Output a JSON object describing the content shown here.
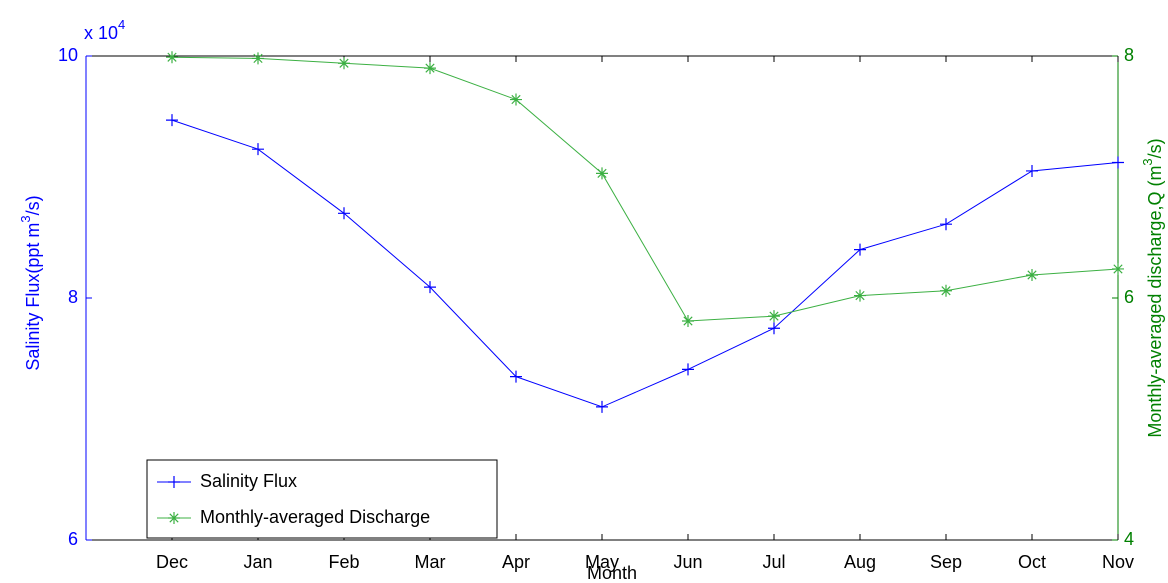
{
  "chart_data": {
    "type": "line",
    "categories": [
      "Dec",
      "Jan",
      "Feb",
      "Mar",
      "Apr",
      "May",
      "Jun",
      "Jul",
      "Aug",
      "Sep",
      "Oct",
      "Nov"
    ],
    "series": [
      {
        "name": "Salinity Flux",
        "color": "#0000ff",
        "marker": "+",
        "values": [
          9.47,
          9.23,
          8.7,
          8.09,
          7.35,
          7.1,
          7.41,
          7.75,
          8.4,
          8.61,
          9.05,
          9.12
        ]
      },
      {
        "name": "Monthly-averaged Discharge",
        "color": "#3cb043",
        "marker": "*",
        "axis": "y2",
        "values": [
          7.99,
          7.98,
          7.94,
          7.9,
          7.64,
          7.03,
          5.81,
          5.85,
          6.02,
          6.06,
          6.19,
          6.24
        ]
      }
    ],
    "xlabel": "Month",
    "ylabel": [
      "Salinity Flux(ppt m",
      "3",
      "/s)"
    ],
    "y2label": [
      "Monthly-averaged discharge,Q (m",
      "3",
      "/s)"
    ],
    "y_multiplier": [
      "x 10",
      "4"
    ],
    "ylim": [
      6,
      10
    ],
    "yticks": [
      6,
      8,
      10
    ],
    "ycolor": "#0000ff",
    "y2lim": [
      4,
      8
    ],
    "y2ticks": [
      4,
      6,
      8
    ],
    "y2color": "#008000",
    "legend": "lower left"
  }
}
